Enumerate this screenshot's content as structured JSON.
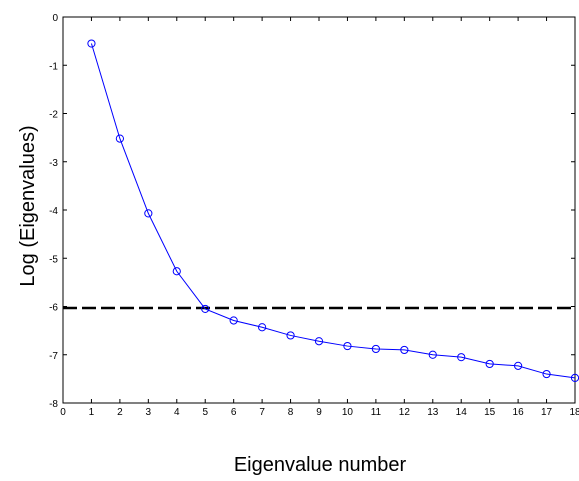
{
  "chart_data": {
    "type": "line",
    "title": "",
    "xlabel": "Eigenvalue number",
    "ylabel": "Log (Eigenvalues)",
    "xlim": [
      0,
      18
    ],
    "ylim": [
      -8,
      0
    ],
    "xticks": [
      0,
      1,
      2,
      3,
      4,
      5,
      6,
      7,
      8,
      9,
      10,
      11,
      12,
      13,
      14,
      15,
      16,
      17,
      18
    ],
    "yticks": [
      0,
      -1,
      -2,
      -3,
      -4,
      -5,
      -6,
      -7,
      -8
    ],
    "grid": false,
    "series": [
      {
        "color": "#0000ff",
        "marker": "circle",
        "x": [
          1,
          2,
          3,
          4,
          5,
          6,
          7,
          8,
          9,
          10,
          11,
          12,
          13,
          14,
          15,
          16,
          17,
          18
        ],
        "y": [
          -0.55,
          -2.52,
          -4.07,
          -5.27,
          -6.05,
          -6.29,
          -6.43,
          -6.6,
          -6.72,
          -6.82,
          -6.88,
          -6.9,
          -7.0,
          -7.05,
          -7.19,
          -7.23,
          -7.4,
          -7.48
        ]
      }
    ],
    "reference_line": {
      "y": -6.03,
      "style": "dashed",
      "color": "#000000"
    }
  }
}
